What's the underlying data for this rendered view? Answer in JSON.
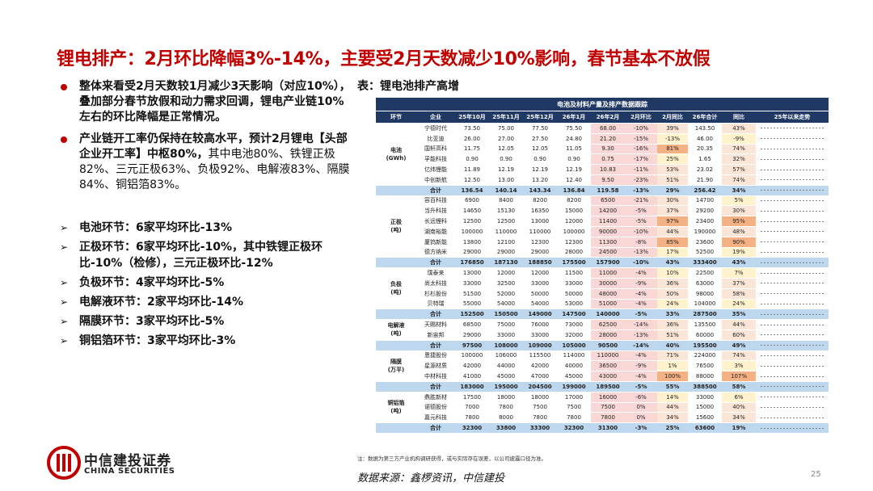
{
  "header": {
    "title": "锂电排产：2月环比降幅3%-14%，主要受2月天数减少10%影响，春节基本不放假"
  },
  "left": {
    "bullets": [
      [
        {
          "text": "整体来看受2月天数较1月减少3天影响（对应10%），叠加部分春节放假和动力需求回调，锂电产业链10%左右的环比降幅是正常情况。",
          "bold": true
        }
      ],
      [
        {
          "text": "产业链开工率仍保持在较高水平，预计2月锂电【头部企业开工率】中枢80%，",
          "bold": true
        },
        {
          "text": "其中电池80%、铁锂正极82%、三元正极63%、负极92%、电解液83%、隔膜84%、铜铝箔83%。",
          "bold": false
        }
      ]
    ],
    "segments": [
      "电池环节：6家平均环比-13%",
      "正极环节：6家平均环比-10%，其中铁锂正极环比-10%（检修），三元正极环比-12%",
      "负极环节：4家平均环比-5%",
      "电解液环节：2家平均环比-14%",
      "隔膜环节：3家平均环比-5%",
      "铜铝箔环节：3家平均环比-3%"
    ]
  },
  "table": {
    "caption": "表：锂电池排产高增",
    "title": "电池及材料产量及排产数据跟踪",
    "columns": [
      "环节",
      "企业",
      "25年10月",
      "25年11月",
      "25年12月",
      "26年1月",
      "26年2月",
      "2月环比",
      "2月同比",
      "26年合计",
      "同比",
      "25年以来走势"
    ],
    "groups": [
      {
        "name": "电池",
        "unit": "(GWh)",
        "rows": [
          [
            "宁德时代",
            "73.50",
            "75.00",
            "77.50",
            "75.50",
            "68.00",
            "-10%",
            "39%",
            "143.50",
            "43%"
          ],
          [
            "比亚迪",
            "26.00",
            "27.00",
            "27.50",
            "24.80",
            "21.20",
            "-15%",
            "-13%",
            "46.00",
            "-9%"
          ],
          [
            "国轩高科",
            "11.75",
            "12.05",
            "12.05",
            "11.05",
            "9.30",
            "-16%",
            "81%",
            "20.35",
            "74%"
          ],
          [
            "孚能科技",
            "0.90",
            "0.90",
            "0.90",
            "0.90",
            "0.75",
            "-17%",
            "25%",
            "1.65",
            "32%"
          ],
          [
            "亿纬锂能",
            "11.89",
            "12.19",
            "12.19",
            "12.19",
            "10.83",
            "-11%",
            "53%",
            "23.02",
            "57%"
          ],
          [
            "中创新航",
            "12.50",
            "13.00",
            "13.20",
            "12.40",
            "9.50",
            "-23%",
            "51%",
            "21.90",
            "74%"
          ]
        ],
        "total": [
          "合计",
          "136.54",
          "140.14",
          "143.34",
          "136.84",
          "119.58",
          "-13%",
          "29%",
          "256.42",
          "34%"
        ]
      },
      {
        "name": "正极",
        "unit": "(吨)",
        "rows": [
          [
            "容百科技",
            "6900",
            "8400",
            "8200",
            "8200",
            "6500",
            "-21%",
            "30%",
            "14700",
            "5%"
          ],
          [
            "当升科技",
            "14650",
            "15130",
            "16350",
            "15000",
            "14200",
            "-5%",
            "37%",
            "29200",
            "30%"
          ],
          [
            "长远锂科",
            "12500",
            "12500",
            "13000",
            "12000",
            "11400",
            "-5%",
            "97%",
            "23400",
            "95%"
          ],
          [
            "湖南裕能",
            "100000",
            "110000",
            "110000",
            "100000",
            "90000",
            "-10%",
            "44%",
            "190000",
            "48%"
          ],
          [
            "厦钨新能",
            "13800",
            "12100",
            "12300",
            "12300",
            "11300",
            "-8%",
            "85%",
            "23600",
            "90%"
          ],
          [
            "德方纳米",
            "29000",
            "29000",
            "29000",
            "28000",
            "24500",
            "-13%",
            "17%",
            "52500",
            "19%"
          ]
        ],
        "total": [
          "合计",
          "176850",
          "187130",
          "188850",
          "175500",
          "157900",
          "-10%",
          "43%",
          "333400",
          "43%"
        ]
      },
      {
        "name": "负极",
        "unit": "(吨)",
        "rows": [
          [
            "璞泰来",
            "13000",
            "12000",
            "12000",
            "11500",
            "11000",
            "-4%",
            "10%",
            "22500",
            "7%"
          ],
          [
            "尚太科技",
            "33000",
            "32500",
            "33000",
            "33000",
            "30000",
            "-9%",
            "36%",
            "63000",
            "37%"
          ],
          [
            "杉杉股份",
            "51500",
            "52000",
            "50000",
            "50000",
            "48000",
            "-4%",
            "50%",
            "98000",
            "58%"
          ],
          [
            "贝特瑞",
            "55000",
            "54000",
            "54000",
            "53000",
            "51000",
            "-4%",
            "24%",
            "104000",
            "24%"
          ]
        ],
        "total": [
          "合计",
          "152500",
          "150500",
          "149000",
          "147500",
          "140000",
          "-5%",
          "33%",
          "287500",
          "35%"
        ]
      },
      {
        "name": "电解液",
        "unit": "(吨)",
        "rows": [
          [
            "天赐材料",
            "68500",
            "75000",
            "76000",
            "73000",
            "62500",
            "-14%",
            "36%",
            "135500",
            "44%"
          ],
          [
            "新宙邦",
            "29000",
            "33000",
            "33000",
            "32000",
            "28000",
            "-13%",
            "51%",
            "60000",
            "60%"
          ]
        ],
        "total": [
          "合计",
          "97500",
          "108000",
          "109000",
          "105000",
          "90500",
          "-14%",
          "40%",
          "195500",
          "49%"
        ]
      },
      {
        "name": "隔膜",
        "unit": "(万平)",
        "rows": [
          [
            "恩捷股份",
            "100000",
            "106000",
            "115500",
            "114000",
            "110000",
            "-4%",
            "71%",
            "224000",
            "74%"
          ],
          [
            "星源材质",
            "42000",
            "44000",
            "42000",
            "40000",
            "36500",
            "-9%",
            "1%",
            "76500",
            "3%"
          ],
          [
            "中材科技",
            "41000",
            "45000",
            "47000",
            "45000",
            "43000",
            "-4%",
            "100%",
            "88000",
            "107%"
          ]
        ],
        "total": [
          "合计",
          "183000",
          "195000",
          "204500",
          "199000",
          "189500",
          "-5%",
          "55%",
          "388500",
          "58%"
        ]
      },
      {
        "name": "铜铝箔",
        "unit": "(吨)",
        "rows": [
          [
            "鼎胜新材",
            "17500",
            "18000",
            "18000",
            "17000",
            "16000",
            "-6%",
            "14%",
            "33000",
            "6%"
          ],
          [
            "诺德股份",
            "7000",
            "7800",
            "7500",
            "7500",
            "7500",
            "0%",
            "44%",
            "15000",
            "40%"
          ],
          [
            "嘉元科技",
            "7800",
            "8000",
            "7800",
            "7800",
            "7800",
            "0%",
            "34%",
            "15600",
            "34%"
          ]
        ],
        "total": [
          "合计",
          "32300",
          "33800",
          "33300",
          "32300",
          "31300",
          "-3%",
          "25%",
          "63600",
          "19%"
        ]
      }
    ],
    "note": "注：数据为第三方产业机构调研获得，或与实际存在误差，以公司披露口径为准。"
  },
  "footer": {
    "source": "数据来源：鑫椤资讯，中信建投",
    "page": "25",
    "logo_cn": "中信建投证券",
    "logo_en": "CHINA SECURITIES"
  }
}
